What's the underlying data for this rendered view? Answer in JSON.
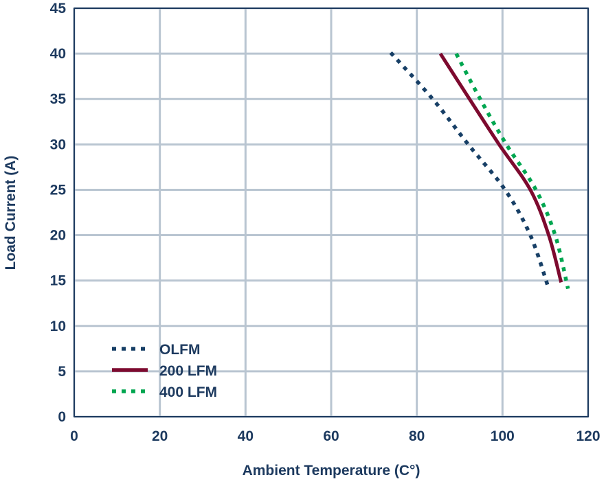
{
  "chart_data": {
    "type": "line",
    "title": "",
    "xlabel": "Ambient Temperature (C°)",
    "ylabel": "Load Current (A)",
    "xlim": [
      0,
      120
    ],
    "ylim": [
      0,
      45
    ],
    "xticks": [
      0,
      20,
      40,
      60,
      80,
      100,
      120
    ],
    "yticks": [
      0,
      5,
      10,
      15,
      20,
      25,
      30,
      35,
      40,
      45
    ],
    "grid": true,
    "legend_position": "bottom-left",
    "series": [
      {
        "name": "OLFM",
        "color": "#173f66",
        "style": "dotted",
        "x": [
          73.9,
          83.7,
          92.0,
          100.6,
          106.5,
          110.6
        ],
        "y": [
          40.1,
          35,
          30,
          25,
          20,
          14.4
        ]
      },
      {
        "name": "200 LFM",
        "color": "#7d0a2f",
        "style": "solid",
        "x": [
          85.5,
          92.3,
          99.2,
          106.5,
          110.8,
          113.7
        ],
        "y": [
          40,
          35,
          30,
          25,
          20,
          14.8
        ]
      },
      {
        "name": "400 LFM",
        "color": "#00a650",
        "style": "dotted",
        "x": [
          89.2,
          94.8,
          100.9,
          107.8,
          112.3,
          115.3
        ],
        "y": [
          40,
          35,
          30,
          25,
          20,
          14.1
        ]
      }
    ]
  }
}
